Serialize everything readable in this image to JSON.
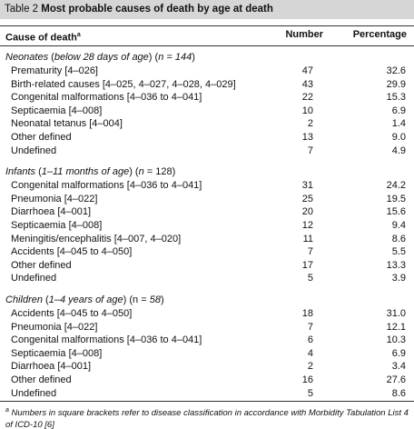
{
  "table": {
    "label": "Table 2",
    "title": "Most probable causes of death by age at death",
    "columns": [
      "Cause of death",
      "Number",
      "Percentage"
    ],
    "column_note_mark": "a",
    "groups": [
      {
        "heading": [
          {
            "text": "Neonates",
            "italic": true
          },
          {
            "text": " (",
            "italic": false
          },
          {
            "text": "below 28 days of age",
            "italic": true
          },
          {
            "text": ") (",
            "italic": false
          },
          {
            "text": "n = 144",
            "italic": true
          },
          {
            "text": ")",
            "italic": false
          }
        ],
        "rows": [
          [
            "Prematurity [4–026]",
            "47",
            "32.6"
          ],
          [
            "Birth-related causes [4–025, 4–027, 4–028, 4–029]",
            "43",
            "29.9"
          ],
          [
            "Congenital malformations [4–036 to 4–041]",
            "22",
            "15.3"
          ],
          [
            "Septicaemia [4–008]",
            "10",
            "6.9"
          ],
          [
            "Neonatal tetanus [4–004]",
            "2",
            "1.4"
          ],
          [
            "Other defined",
            "13",
            "9.0"
          ],
          [
            "Undefined",
            "7",
            "4.9"
          ]
        ]
      },
      {
        "heading": [
          {
            "text": "Infants",
            "italic": true
          },
          {
            "text": " (",
            "italic": false
          },
          {
            "text": "1–11 months of age",
            "italic": true
          },
          {
            "text": ") (",
            "italic": false
          },
          {
            "text": "n",
            "italic": true
          },
          {
            "text": " = 128)",
            "italic": false
          }
        ],
        "rows": [
          [
            "Congenital malformations [4–036 to 4–041]",
            "31",
            "24.2"
          ],
          [
            "Pneumonia [4–022]",
            "25",
            "19.5"
          ],
          [
            "Diarrhoea [4–001]",
            "20",
            "15.6"
          ],
          [
            "Septicaemia [4–008]",
            "12",
            "9.4"
          ],
          [
            "Meningitis/encephalitis [4–007, 4–020]",
            "11",
            "8.6"
          ],
          [
            "Accidents [4–045 to 4–050]",
            "7",
            "5.5"
          ],
          [
            "Other defined",
            "17",
            "13.3"
          ],
          [
            "Undefined",
            "5",
            "3.9"
          ]
        ]
      },
      {
        "heading": [
          {
            "text": "Children",
            "italic": true
          },
          {
            "text": " (",
            "italic": false
          },
          {
            "text": "1–4 years of age",
            "italic": true
          },
          {
            "text": ") (n = ",
            "italic": false
          },
          {
            "text": "58",
            "italic": true
          },
          {
            "text": ")",
            "italic": false
          }
        ],
        "rows": [
          [
            "Accidents [4–045 to 4–050]",
            "18",
            "31.0"
          ],
          [
            "Pneumonia [4–022]",
            "7",
            "12.1"
          ],
          [
            "Congenital malformations [4–036 to 4–041]",
            "6",
            "10.3"
          ],
          [
            "Septicaemia [4–008]",
            "4",
            "6.9"
          ],
          [
            "Diarrhoea [4–001]",
            "2",
            "3.4"
          ],
          [
            "Other defined",
            "16",
            "27.6"
          ],
          [
            "Undefined",
            "5",
            "8.6"
          ]
        ]
      }
    ],
    "footnote_mark": "a",
    "footnote": "Numbers in square brackets refer to disease classification in accordance with Morbidity Tabulation List 4 of ICD-10 [6]"
  }
}
